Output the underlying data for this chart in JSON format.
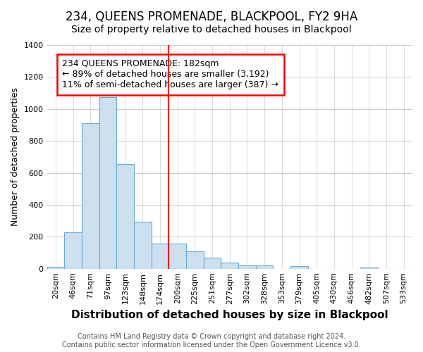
{
  "title": "234, QUEENS PROMENADE, BLACKPOOL, FY2 9HA",
  "subtitle": "Size of property relative to detached houses in Blackpool",
  "xlabel": "Distribution of detached houses by size in Blackpool",
  "ylabel": "Number of detached properties",
  "bar_color": "#cde0f0",
  "bar_edge_color": "#6aaad4",
  "categories": [
    "20sqm",
    "46sqm",
    "71sqm",
    "97sqm",
    "123sqm",
    "148sqm",
    "174sqm",
    "200sqm",
    "225sqm",
    "251sqm",
    "277sqm",
    "302sqm",
    "328sqm",
    "353sqm",
    "379sqm",
    "405sqm",
    "430sqm",
    "456sqm",
    "482sqm",
    "507sqm",
    "533sqm"
  ],
  "values": [
    12,
    228,
    910,
    1075,
    655,
    295,
    158,
    158,
    108,
    70,
    38,
    22,
    20,
    0,
    18,
    0,
    0,
    0,
    8,
    0,
    0
  ],
  "ylim": [
    0,
    1400
  ],
  "yticks": [
    0,
    200,
    400,
    600,
    800,
    1000,
    1200,
    1400
  ],
  "property_line_x": 6.5,
  "annotation_text": "234 QUEENS PROMENADE: 182sqm\n← 89% of detached houses are smaller (3,192)\n11% of semi-detached houses are larger (387) →",
  "footnote": "Contains HM Land Registry data © Crown copyright and database right 2024.\nContains public sector information licensed under the Open Government Licence v3.0.",
  "background_color": "#ffffff",
  "grid_color": "#cccccc",
  "title_fontsize": 12,
  "subtitle_fontsize": 10,
  "xlabel_fontsize": 11,
  "ylabel_fontsize": 9,
  "tick_fontsize": 8,
  "annotation_fontsize": 9,
  "footnote_fontsize": 7
}
